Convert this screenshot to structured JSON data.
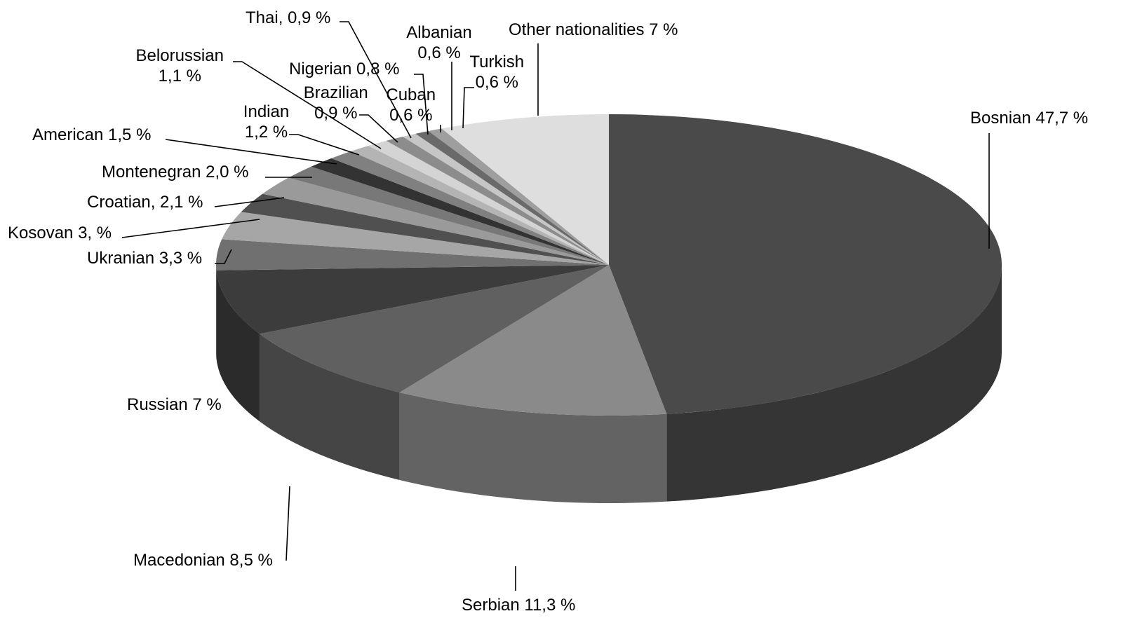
{
  "chart_data": {
    "type": "pie",
    "style": "3d",
    "slices": [
      {
        "name": "Bosnian",
        "value": 47.7,
        "label": "Bosnian 47,7 %",
        "color": "#4a4a4a"
      },
      {
        "name": "Serbian",
        "value": 11.3,
        "label": "Serbian 11,3 %",
        "color": "#8a8a8a"
      },
      {
        "name": "Macedonian",
        "value": 8.5,
        "label": "Macedonian 8,5 %",
        "color": "#606060"
      },
      {
        "name": "Russian",
        "value": 7,
        "label": "Russian 7 %",
        "color": "#3c3c3c"
      },
      {
        "name": "Ukranian",
        "value": 3.3,
        "label": "Ukranian 3,3 %",
        "color": "#707070"
      },
      {
        "name": "Kosovan",
        "value": 3,
        "label": "Kosovan 3, %",
        "color": "#a6a6a6"
      },
      {
        "name": "Croatian",
        "value": 2.1,
        "label": "Croatian, 2,1 %",
        "color": "#505050"
      },
      {
        "name": "Montenegran",
        "value": 2.0,
        "label": "Montenegran 2,0 %",
        "color": "#9a9a9a"
      },
      {
        "name": "American",
        "value": 1.5,
        "label": "American 1,5 %",
        "color": "#787878"
      },
      {
        "name": "Indian",
        "value": 1.2,
        "label": "Indian\n1,2 %",
        "color": "#333333"
      },
      {
        "name": "Belorussian",
        "value": 1.1,
        "label": "Belorussian\n1,1 %",
        "color": "#808080"
      },
      {
        "name": "Brazilian",
        "value": 0.9,
        "label": "Brazilian\n0,9 %",
        "color": "#b4b4b4"
      },
      {
        "name": "Thai",
        "value": 0.9,
        "label": "Thai, 0,9 %",
        "color": "#d4d4d4"
      },
      {
        "name": "Nigerian",
        "value": 0.8,
        "label": "Nigerian 0,8 %",
        "color": "#8c8c8c"
      },
      {
        "name": "Cuban",
        "value": 0.6,
        "label": "Cuban\n0,6 %",
        "color": "#c6c6c6"
      },
      {
        "name": "Albanian",
        "value": 0.6,
        "label": "Albanian\n0,6 %",
        "color": "#6a6a6a"
      },
      {
        "name": "Turkish",
        "value": 0.6,
        "label": "Turkish\n0,6 %",
        "color": "#9e9e9e"
      },
      {
        "name": "Other nationalities",
        "value": 7,
        "label": "Other nationalities 7 %",
        "color": "#dedede"
      }
    ],
    "legend": "none"
  }
}
